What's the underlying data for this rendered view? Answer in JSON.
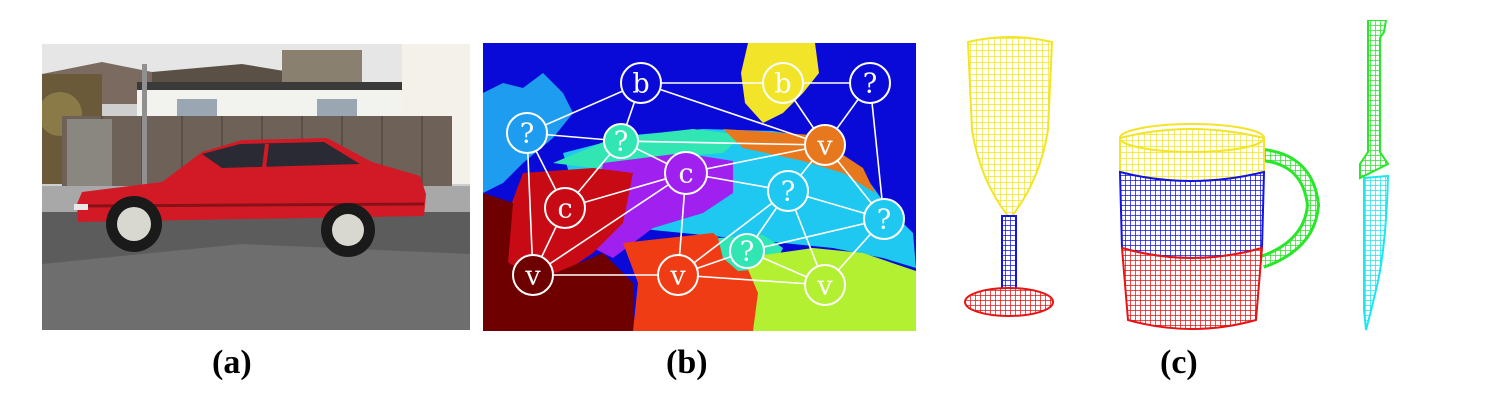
{
  "captions": {
    "a": "(a)",
    "b": "(b)",
    "c": "(c)"
  },
  "graph": {
    "nodes": [
      {
        "id": "b1",
        "label": "b"
      },
      {
        "id": "b2",
        "label": "b"
      },
      {
        "id": "q1",
        "label": "?"
      },
      {
        "id": "q2",
        "label": "?"
      },
      {
        "id": "q3",
        "label": "?"
      },
      {
        "id": "v1",
        "label": "v"
      },
      {
        "id": "c1",
        "label": "c"
      },
      {
        "id": "q4",
        "label": "?"
      },
      {
        "id": "q5",
        "label": "?"
      },
      {
        "id": "c2",
        "label": "c"
      },
      {
        "id": "v2",
        "label": "v"
      },
      {
        "id": "v3",
        "label": "v"
      },
      {
        "id": "q6",
        "label": "?"
      },
      {
        "id": "v4",
        "label": "v"
      }
    ]
  },
  "colors": {
    "blue": "#0a0ad8",
    "cyan": "#1ec8f0",
    "yellow": "#f2e428",
    "purple": "#a020f0",
    "orange": "#e8781e",
    "dark_red": "#6e0000",
    "crimson": "#c80a14",
    "red_orange": "#f03c14",
    "lime": "#b4f032",
    "teal": "#32e6b4",
    "green": "#28e628"
  }
}
